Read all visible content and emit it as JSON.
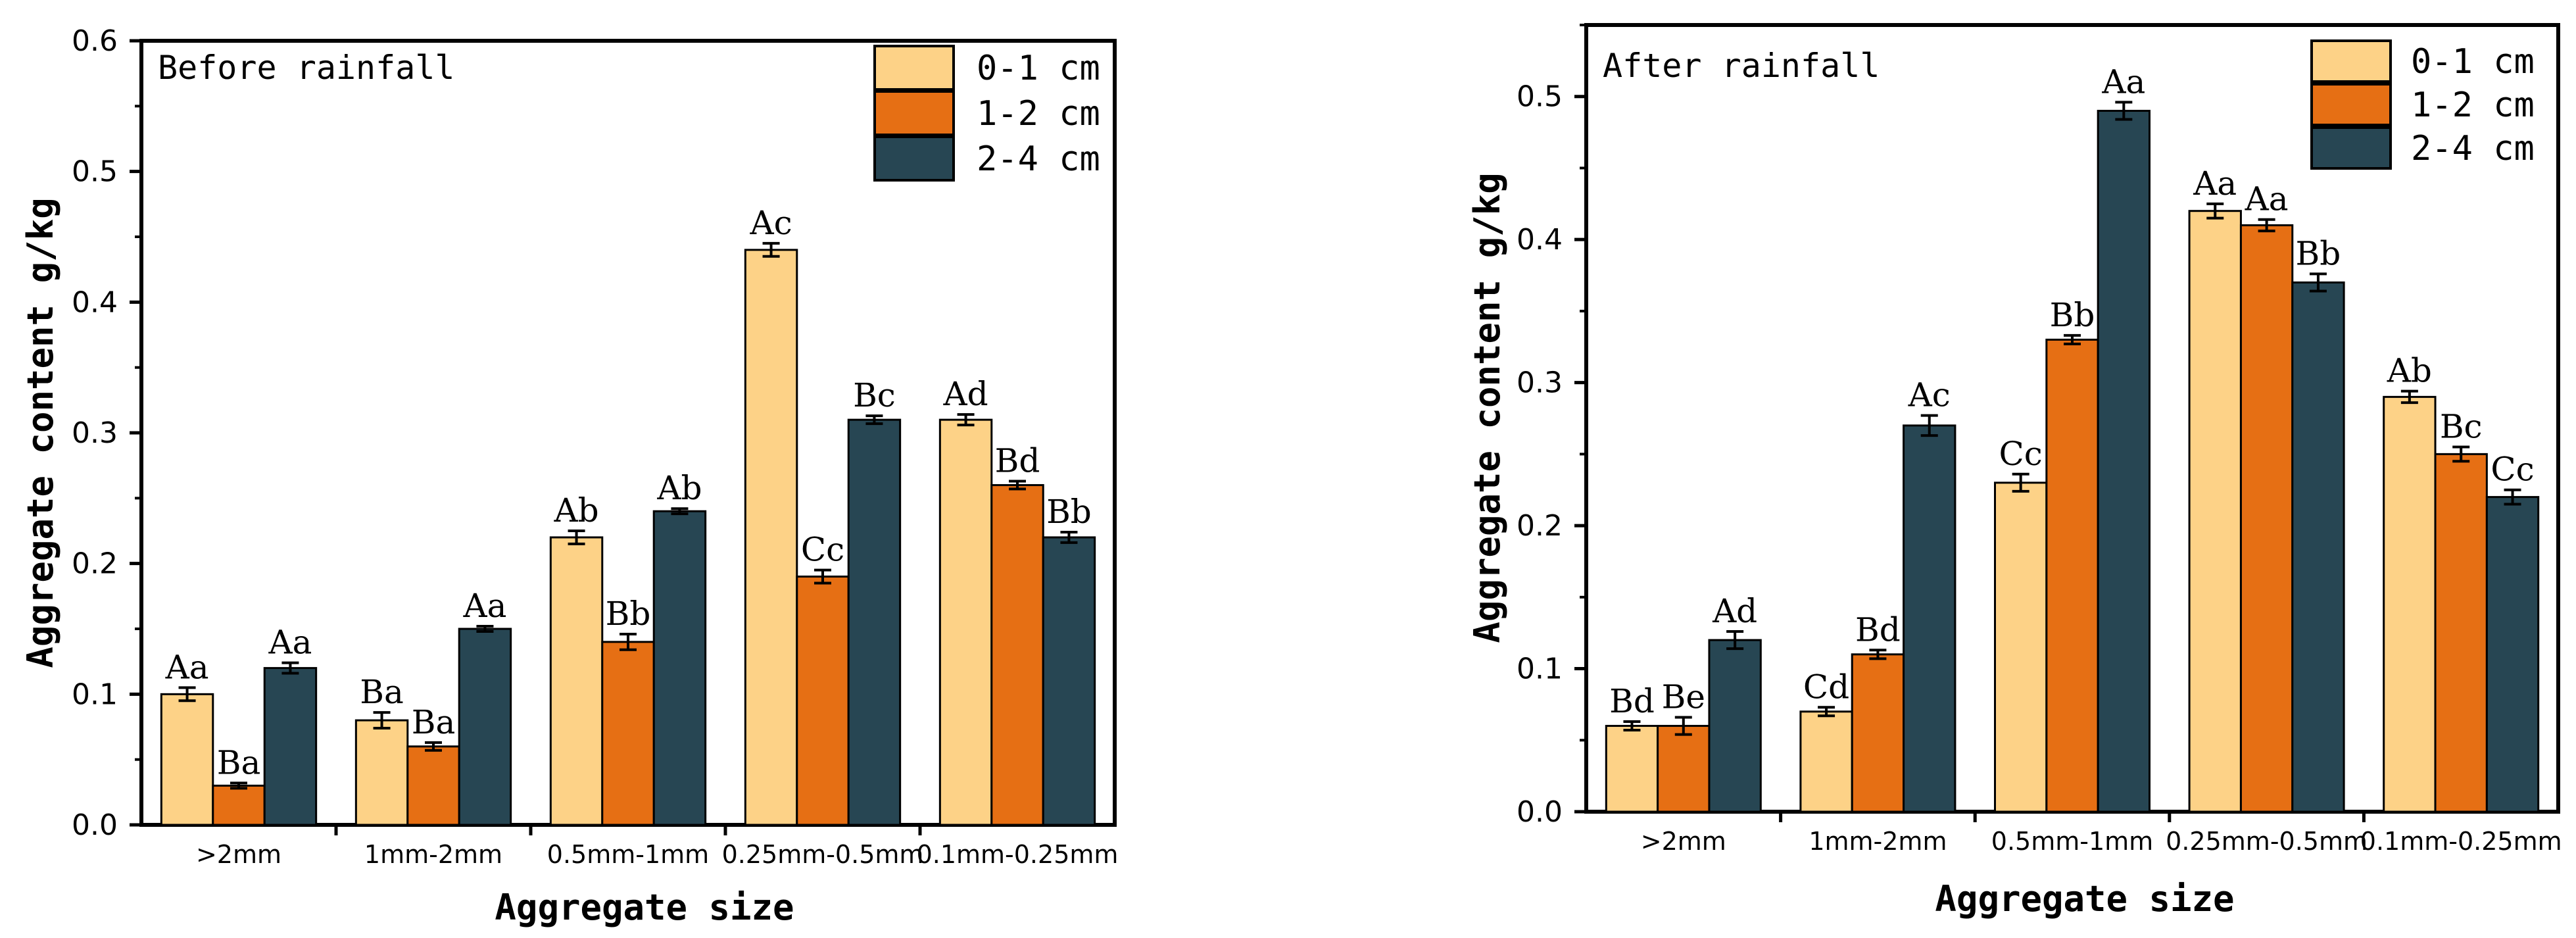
{
  "figure": {
    "panels": [
      {
        "title": "Before rainfall",
        "ylabel": "Aggregate content  g/kg",
        "xlabel": "Aggregate size"
      },
      {
        "title": "After rainfall",
        "ylabel": "Aggregate content  g/kg",
        "xlabel": "Aggregate size"
      }
    ]
  },
  "colors": {
    "0-1 cm": "#FDD287",
    "1-2 cm": "#E66F14",
    "2-4 cm": "#274653"
  },
  "chart_data": [
    {
      "type": "bar",
      "title": "Before rainfall",
      "xlabel": "Aggregate size",
      "ylabel": "Aggregate content  g/kg",
      "ylim": [
        0,
        0.6
      ],
      "yticks": [
        "0.0",
        "0.1",
        "0.2",
        "0.3",
        "0.4",
        "0.5",
        "0.6"
      ],
      "categories": [
        ">2mm",
        "1mm-2mm",
        "0.5mm-1mm",
        "0.25mm-0.5mm",
        "0.1mm-0.25mm"
      ],
      "legend_position": "top-right",
      "series": [
        {
          "name": "0-1 cm",
          "values": [
            0.1,
            0.08,
            0.22,
            0.44,
            0.31
          ],
          "errors": [
            0.005,
            0.006,
            0.005,
            0.005,
            0.004
          ],
          "labels": [
            "Aa",
            "Ba",
            "Ab",
            "Ac",
            "Ad"
          ]
        },
        {
          "name": "1-2 cm",
          "values": [
            0.03,
            0.06,
            0.14,
            0.19,
            0.26
          ],
          "errors": [
            0.002,
            0.003,
            0.006,
            0.005,
            0.003
          ],
          "labels": [
            "Ba",
            "Ba",
            "Bb",
            "Cc",
            "Bd"
          ]
        },
        {
          "name": "2-4 cm",
          "values": [
            0.12,
            0.15,
            0.24,
            0.31,
            0.22
          ],
          "errors": [
            0.004,
            0.002,
            0.002,
            0.003,
            0.004
          ],
          "labels": [
            "Aa",
            "Aa",
            "Ab",
            "Bc",
            "Bb"
          ]
        }
      ]
    },
    {
      "type": "bar",
      "title": "After rainfall",
      "xlabel": "Aggregate size",
      "ylabel": "Aggregate content  g/kg",
      "ylim": [
        0,
        0.55
      ],
      "yticks": [
        "0.0",
        "0.1",
        "0.2",
        "0.3",
        "0.4",
        "0.5"
      ],
      "categories": [
        ">2mm",
        "1mm-2mm",
        "0.5mm-1mm",
        "0.25mm-0.5mm",
        "0.1mm-0.25mm"
      ],
      "legend_position": "top-right",
      "series": [
        {
          "name": "0-1 cm",
          "values": [
            0.06,
            0.07,
            0.23,
            0.42,
            0.29
          ],
          "errors": [
            0.003,
            0.003,
            0.006,
            0.005,
            0.004
          ],
          "labels": [
            "Bd",
            "Cd",
            "Cc",
            "Aa",
            "Ab"
          ]
        },
        {
          "name": "1-2 cm",
          "values": [
            0.06,
            0.11,
            0.33,
            0.41,
            0.25
          ],
          "errors": [
            0.006,
            0.003,
            0.003,
            0.004,
            0.005
          ],
          "labels": [
            "Be",
            "Bd",
            "Bb",
            "Aa",
            "Bc"
          ]
        },
        {
          "name": "2-4 cm",
          "values": [
            0.12,
            0.27,
            0.49,
            0.37,
            0.22
          ],
          "errors": [
            0.006,
            0.007,
            0.006,
            0.006,
            0.005
          ],
          "labels": [
            "Ad",
            "Ac",
            "Aa",
            "Bb",
            "Cc"
          ]
        }
      ]
    }
  ]
}
